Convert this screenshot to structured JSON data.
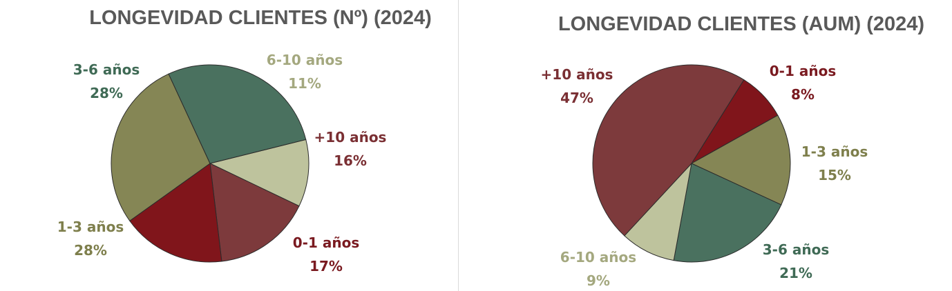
{
  "chart_data": [
    {
      "type": "pie",
      "title": "LONGEVIDAD CLIENTES (Nº) (2024)",
      "slices": [
        {
          "label": "6-10 años",
          "value": 11,
          "value_label": "11%",
          "color": "#bec39d",
          "text_color": "#a4a87f"
        },
        {
          "label": "+10 años",
          "value": 16,
          "value_label": "16%",
          "color": "#7d3a3c",
          "text_color": "#7a2f33"
        },
        {
          "label": "0-1 años",
          "value": 17,
          "value_label": "17%",
          "color": "#80151b",
          "text_color": "#7a1a20"
        },
        {
          "label": "1-3 años",
          "value": 28,
          "value_label": "28%",
          "color": "#858655",
          "text_color": "#7e7f4c"
        },
        {
          "label": "3-6 años",
          "value": 28,
          "value_label": "28%",
          "color": "#4a715f",
          "text_color": "#3f6a55"
        }
      ]
    },
    {
      "type": "pie",
      "title": "LONGEVIDAD CLIENTES (AUM) (2024)",
      "slices": [
        {
          "label": "0-1 años",
          "value": 8,
          "value_label": "8%",
          "color": "#80151b",
          "text_color": "#7a1a20"
        },
        {
          "label": "1-3 años",
          "value": 15,
          "value_label": "15%",
          "color": "#858655",
          "text_color": "#7e7f4c"
        },
        {
          "label": "3-6 años",
          "value": 21,
          "value_label": "21%",
          "color": "#4a715f",
          "text_color": "#3f6a55"
        },
        {
          "label": "6-10 años",
          "value": 9,
          "value_label": "9%",
          "color": "#bec39d",
          "text_color": "#a4a87f"
        },
        {
          "label": "+10 años",
          "value": 47,
          "value_label": "47%",
          "color": "#7d3a3c",
          "text_color": "#7a2f33"
        }
      ]
    }
  ]
}
